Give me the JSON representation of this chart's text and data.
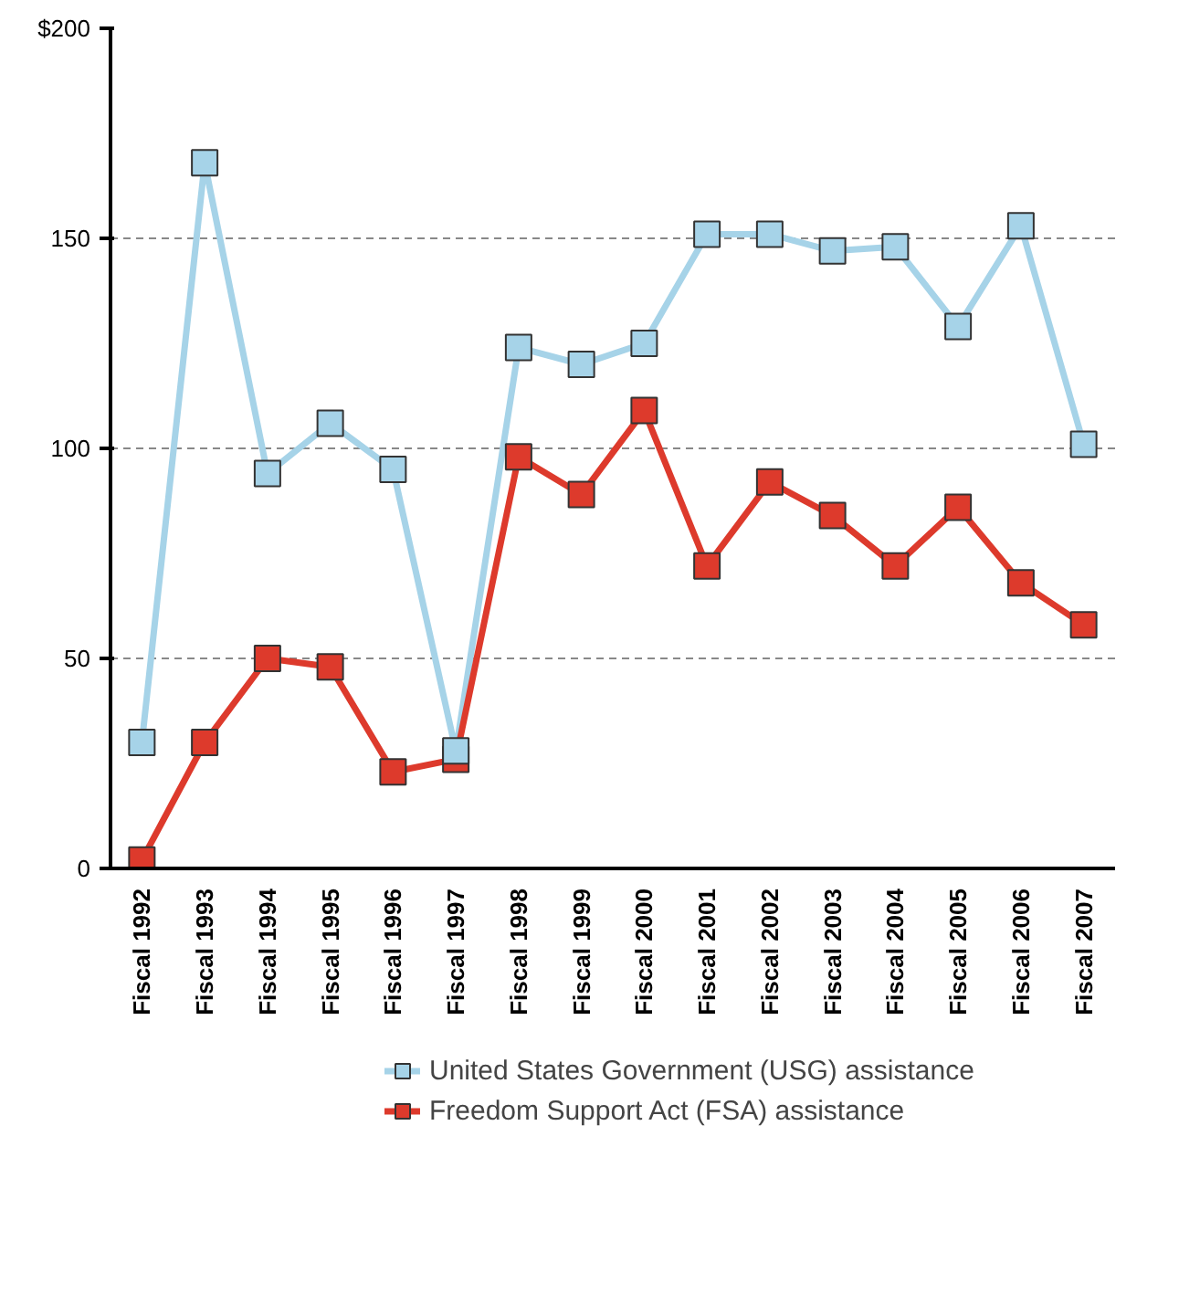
{
  "chart_data": {
    "type": "line",
    "categories": [
      "Fiscal 1992",
      "Fiscal 1993",
      "Fiscal 1994",
      "Fiscal 1995",
      "Fiscal 1996",
      "Fiscal 1997",
      "Fiscal 1998",
      "Fiscal 1999",
      "Fiscal 2000",
      "Fiscal 2001",
      "Fiscal 2002",
      "Fiscal 2003",
      "Fiscal 2004",
      "Fiscal 2005",
      "Fiscal 2006",
      "Fiscal 2007"
    ],
    "series": [
      {
        "name": "United States Government (USG) assistance",
        "color": "#a6d3e8",
        "values": [
          30,
          168,
          94,
          106,
          95,
          28,
          124,
          120,
          125,
          151,
          151,
          147,
          148,
          129,
          153,
          101
        ]
      },
      {
        "name": "Freedom Support Act (FSA) assistance",
        "color": "#dd3a2c",
        "values": [
          2,
          30,
          50,
          48,
          23,
          26,
          98,
          89,
          109,
          72,
          92,
          84,
          72,
          86,
          68,
          58
        ]
      }
    ],
    "ylim": [
      0,
      200
    ],
    "yticks": [
      0,
      50,
      100,
      150,
      {
        "value": 200,
        "label": "$200"
      }
    ],
    "grid": "y",
    "legend": "bottom",
    "marker": "square",
    "line_style": "solid"
  }
}
